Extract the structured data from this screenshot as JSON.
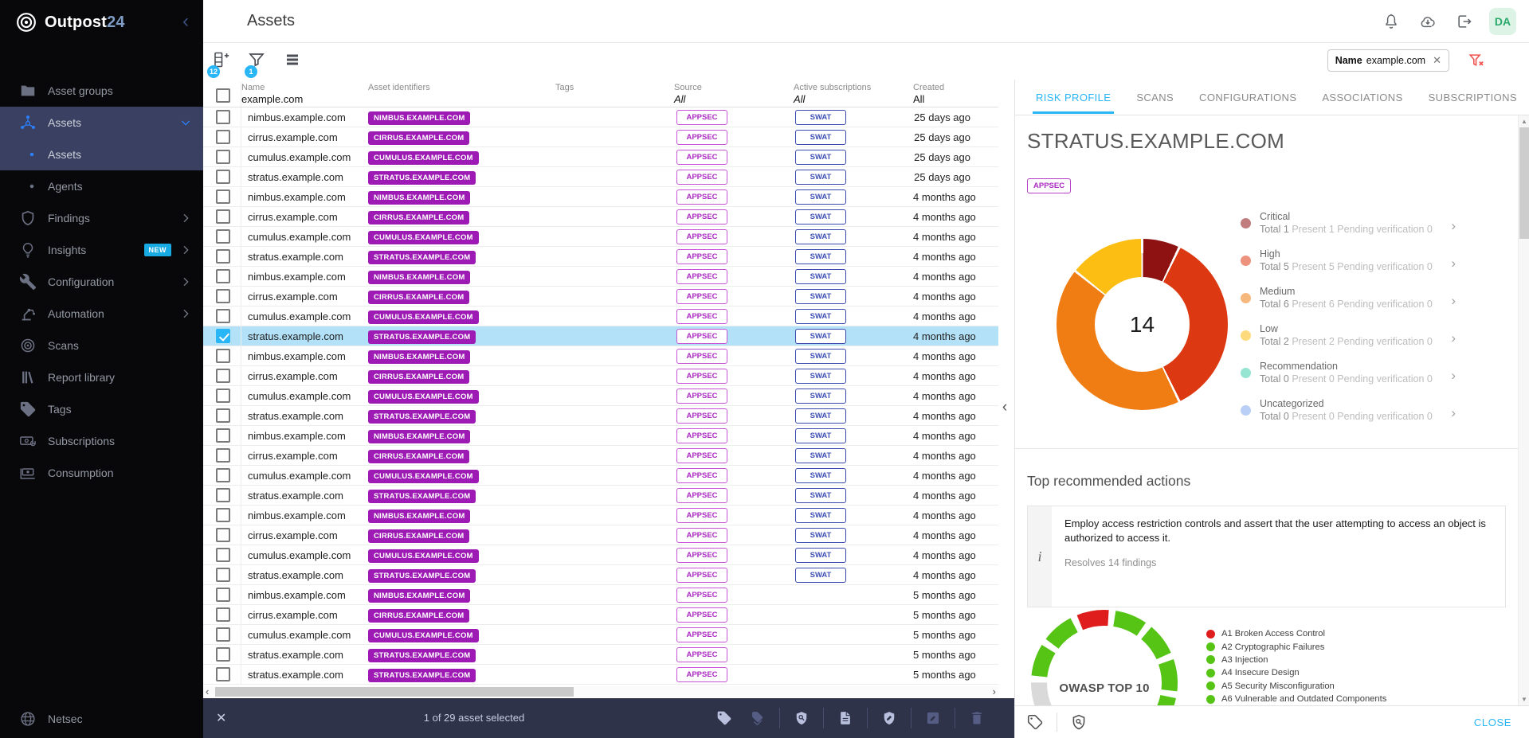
{
  "colors": {
    "accent_blue": "#29b6f6",
    "sidebar_active": "#394061",
    "identifier_badge": "#9d1bb4",
    "appsec": "#ab2bc2",
    "swat": "#3f51b5",
    "selected_row": "#b3e1f8",
    "selection_bar": "#2e3349",
    "new_badge": "#18aae2",
    "close_link": "#29b6f6",
    "filter_clear": "#ef5350",
    "avatar_bg": "#ddf3e6",
    "avatar_fg": "#2aa96c"
  },
  "topbar": {
    "title": "Assets",
    "avatar": "DA"
  },
  "sidebar": {
    "brand": "Outpost",
    "brand_suffix": "24",
    "items": [
      {
        "label": "Asset groups",
        "icon": "folder"
      },
      {
        "label": "Assets",
        "icon": "hub",
        "active": true,
        "expanded": true
      },
      {
        "label": "Assets",
        "icon": "dot",
        "sub": true,
        "active": true
      },
      {
        "label": "Agents",
        "icon": "dot",
        "sub": true
      },
      {
        "label": "Findings",
        "icon": "shield",
        "chevron": true
      },
      {
        "label": "Insights",
        "icon": "bulb",
        "chevron": true,
        "badge": "NEW"
      },
      {
        "label": "Configuration",
        "icon": "wrench",
        "chevron": true
      },
      {
        "label": "Automation",
        "icon": "robot",
        "chevron": true
      },
      {
        "label": "Scans",
        "icon": "scan"
      },
      {
        "label": "Report library",
        "icon": "library"
      },
      {
        "label": "Tags",
        "icon": "tag"
      },
      {
        "label": "Subscriptions",
        "icon": "subs"
      },
      {
        "label": "Consumption",
        "icon": "consumption"
      }
    ],
    "footer": {
      "label": "Netsec",
      "icon": "globe"
    }
  },
  "toolbar": {
    "add_badge": "12",
    "filter_badge": "1",
    "filter_chip": {
      "label": "Name",
      "value": "example.com"
    }
  },
  "table": {
    "header": {
      "name_label": "Name",
      "name_filter": "example.com",
      "identifiers_label": "Asset identifiers",
      "tags_label": "Tags",
      "source_label": "Source",
      "source_filter": "All",
      "subscriptions_label": "Active subscriptions",
      "subscriptions_filter": "All",
      "created_label": "Created",
      "created_filter": "All"
    },
    "rows": [
      {
        "name": "nimbus.example.com",
        "identifier": "NIMBUS.EXAMPLE.COM",
        "source": "APPSEC",
        "subscription": "SWAT",
        "created": "25 days ago"
      },
      {
        "name": "cirrus.example.com",
        "identifier": "CIRRUS.EXAMPLE.COM",
        "source": "APPSEC",
        "subscription": "SWAT",
        "created": "25 days ago"
      },
      {
        "name": "cumulus.example.com",
        "identifier": "CUMULUS.EXAMPLE.COM",
        "source": "APPSEC",
        "subscription": "SWAT",
        "created": "25 days ago"
      },
      {
        "name": "stratus.example.com",
        "identifier": "STRATUS.EXAMPLE.COM",
        "source": "APPSEC",
        "subscription": "SWAT",
        "created": "25 days ago"
      },
      {
        "name": "nimbus.example.com",
        "identifier": "NIMBUS.EXAMPLE.COM",
        "source": "APPSEC",
        "subscription": "SWAT",
        "created": "4 months ago"
      },
      {
        "name": "cirrus.example.com",
        "identifier": "CIRRUS.EXAMPLE.COM",
        "source": "APPSEC",
        "subscription": "SWAT",
        "created": "4 months ago"
      },
      {
        "name": "cumulus.example.com",
        "identifier": "CUMULUS.EXAMPLE.COM",
        "source": "APPSEC",
        "subscription": "SWAT",
        "created": "4 months ago"
      },
      {
        "name": "stratus.example.com",
        "identifier": "STRATUS.EXAMPLE.COM",
        "source": "APPSEC",
        "subscription": "SWAT",
        "created": "4 months ago"
      },
      {
        "name": "nimbus.example.com",
        "identifier": "NIMBUS.EXAMPLE.COM",
        "source": "APPSEC",
        "subscription": "SWAT",
        "created": "4 months ago"
      },
      {
        "name": "cirrus.example.com",
        "identifier": "CIRRUS.EXAMPLE.COM",
        "source": "APPSEC",
        "subscription": "SWAT",
        "created": "4 months ago"
      },
      {
        "name": "cumulus.example.com",
        "identifier": "CUMULUS.EXAMPLE.COM",
        "source": "APPSEC",
        "subscription": "SWAT",
        "created": "4 months ago"
      },
      {
        "name": "stratus.example.com",
        "identifier": "STRATUS.EXAMPLE.COM",
        "source": "APPSEC",
        "subscription": "SWAT",
        "created": "4 months ago",
        "selected": true
      },
      {
        "name": "nimbus.example.com",
        "identifier": "NIMBUS.EXAMPLE.COM",
        "source": "APPSEC",
        "subscription": "SWAT",
        "created": "4 months ago"
      },
      {
        "name": "cirrus.example.com",
        "identifier": "CIRRUS.EXAMPLE.COM",
        "source": "APPSEC",
        "subscription": "SWAT",
        "created": "4 months ago"
      },
      {
        "name": "cumulus.example.com",
        "identifier": "CUMULUS.EXAMPLE.COM",
        "source": "APPSEC",
        "subscription": "SWAT",
        "created": "4 months ago"
      },
      {
        "name": "stratus.example.com",
        "identifier": "STRATUS.EXAMPLE.COM",
        "source": "APPSEC",
        "subscription": "SWAT",
        "created": "4 months ago"
      },
      {
        "name": "nimbus.example.com",
        "identifier": "NIMBUS.EXAMPLE.COM",
        "source": "APPSEC",
        "subscription": "SWAT",
        "created": "4 months ago"
      },
      {
        "name": "cirrus.example.com",
        "identifier": "CIRRUS.EXAMPLE.COM",
        "source": "APPSEC",
        "subscription": "SWAT",
        "created": "4 months ago"
      },
      {
        "name": "cumulus.example.com",
        "identifier": "CUMULUS.EXAMPLE.COM",
        "source": "APPSEC",
        "subscription": "SWAT",
        "created": "4 months ago"
      },
      {
        "name": "stratus.example.com",
        "identifier": "STRATUS.EXAMPLE.COM",
        "source": "APPSEC",
        "subscription": "SWAT",
        "created": "4 months ago"
      },
      {
        "name": "nimbus.example.com",
        "identifier": "NIMBUS.EXAMPLE.COM",
        "source": "APPSEC",
        "subscription": "SWAT",
        "created": "4 months ago"
      },
      {
        "name": "cirrus.example.com",
        "identifier": "CIRRUS.EXAMPLE.COM",
        "source": "APPSEC",
        "subscription": "SWAT",
        "created": "4 months ago"
      },
      {
        "name": "cumulus.example.com",
        "identifier": "CUMULUS.EXAMPLE.COM",
        "source": "APPSEC",
        "subscription": "SWAT",
        "created": "4 months ago"
      },
      {
        "name": "stratus.example.com",
        "identifier": "STRATUS.EXAMPLE.COM",
        "source": "APPSEC",
        "subscription": "SWAT",
        "created": "4 months ago"
      },
      {
        "name": "nimbus.example.com",
        "identifier": "NIMBUS.EXAMPLE.COM",
        "source": "APPSEC",
        "subscription": "",
        "created": "5 months ago"
      },
      {
        "name": "cirrus.example.com",
        "identifier": "CIRRUS.EXAMPLE.COM",
        "source": "APPSEC",
        "subscription": "",
        "created": "5 months ago"
      },
      {
        "name": "cumulus.example.com",
        "identifier": "CUMULUS.EXAMPLE.COM",
        "source": "APPSEC",
        "subscription": "",
        "created": "5 months ago"
      },
      {
        "name": "stratus.example.com",
        "identifier": "STRATUS.EXAMPLE.COM",
        "source": "APPSEC",
        "subscription": "",
        "created": "5 months ago"
      },
      {
        "name": "stratus.example.com",
        "identifier": "STRATUS.EXAMPLE.COM",
        "source": "APPSEC",
        "subscription": "",
        "created": "5 months ago"
      }
    ]
  },
  "selection_bar": {
    "text": "1 of 29 asset selected"
  },
  "panel": {
    "tabs": [
      {
        "label": "RISK PROFILE",
        "active": true
      },
      {
        "label": "SCANS"
      },
      {
        "label": "CONFIGURATIONS"
      },
      {
        "label": "ASSOCIATIONS"
      },
      {
        "label": "SUBSCRIPTIONS"
      }
    ],
    "title": "STRATUS.EXAMPLE.COM",
    "badge": "APPSEC",
    "legend_words": {
      "total": "Total",
      "present": "Present",
      "pending": "Pending verification"
    },
    "risk_legend": [
      {
        "label": "Critical",
        "total": 1,
        "present": 1,
        "pending": 0,
        "color": "#8e1212"
      },
      {
        "label": "High",
        "total": 5,
        "present": 5,
        "pending": 0,
        "color": "#dc3912"
      },
      {
        "label": "Medium",
        "total": 6,
        "present": 6,
        "pending": 0,
        "color": "#ef7d13"
      },
      {
        "label": "Low",
        "total": 2,
        "present": 2,
        "pending": 0,
        "color": "#fcbe13"
      },
      {
        "label": "Recommendation",
        "total": 0,
        "present": 0,
        "pending": 0,
        "color": "#3fd0ae"
      },
      {
        "label": "Uncategorized",
        "total": 0,
        "present": 0,
        "pending": 0,
        "color": "#7fa8ec"
      }
    ],
    "actions": {
      "heading": "Top recommended actions",
      "text": "Employ access restriction controls and assert that the user attempting to access an object is authorized to access it.",
      "resolves": "Resolves 14 findings"
    },
    "close_label": "CLOSE"
  },
  "chart_data": [
    {
      "type": "pie",
      "title": "Risk profile findings donut",
      "center_label": "14",
      "labels": [
        "Critical",
        "High",
        "Medium",
        "Low",
        "Recommendation",
        "Uncategorized"
      ],
      "values": [
        1,
        5,
        6,
        2,
        0,
        0
      ],
      "colors": [
        "#8e1212",
        "#dc3912",
        "#ef7d13",
        "#fcbe13",
        "#3fd0ae",
        "#7fa8ec"
      ],
      "legend_position": "right"
    },
    {
      "type": "gauge",
      "title": "OWASP TOP 10",
      "segments": [
        "#55c415",
        "#d9d9d9",
        "#55c415",
        "#55c415",
        "#e01d1d",
        "#55c415",
        "#55c415",
        "#55c415",
        "#55c415",
        "#55c415"
      ],
      "legend": [
        {
          "label": "A1 Broken Access Control",
          "color": "#e01d1d"
        },
        {
          "label": "A2 Cryptographic Failures",
          "color": "#55c415"
        },
        {
          "label": "A3 Injection",
          "color": "#55c415"
        },
        {
          "label": "A4 Insecure Design",
          "color": "#55c415"
        },
        {
          "label": "A5 Security Misconfiguration",
          "color": "#55c415"
        },
        {
          "label": "A6 Vulnerable and Outdated Components",
          "color": "#55c415"
        }
      ]
    }
  ]
}
